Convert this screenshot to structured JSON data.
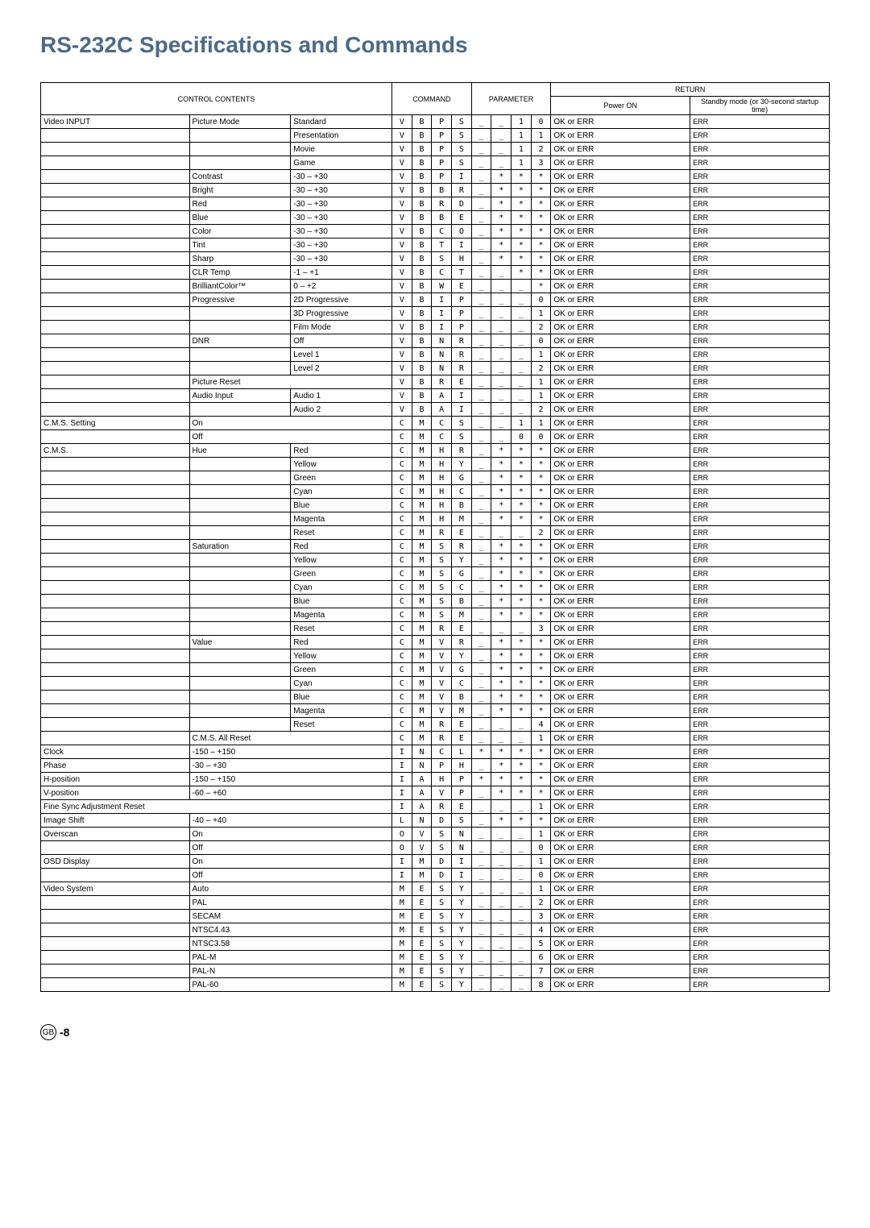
{
  "title": "RS-232C Specifications and Commands",
  "headers": {
    "control": "CONTROL CONTENTS",
    "command": "COMMAND",
    "parameter": "PARAMETER",
    "return": "RETURN",
    "power_on": "Power ON",
    "standby": "Standby mode\n(or 30-second startup time)"
  },
  "footer_badge": "GB",
  "footer_page": "-8",
  "rows": [
    {
      "c1": "Video INPUT",
      "c2": "Picture Mode",
      "c3": "Standard",
      "cmd": [
        "V",
        "B",
        "P",
        "S"
      ],
      "par": [
        "_",
        "_",
        "1",
        "0"
      ],
      "r1": "OK or ERR",
      "r2": "ERR"
    },
    {
      "c1": "",
      "c2": "",
      "c3": "Presentation",
      "cmd": [
        "V",
        "B",
        "P",
        "S"
      ],
      "par": [
        "_",
        "_",
        "1",
        "1"
      ],
      "r1": "OK or ERR",
      "r2": "ERR"
    },
    {
      "c1": "",
      "c2": "",
      "c3": "Movie",
      "cmd": [
        "V",
        "B",
        "P",
        "S"
      ],
      "par": [
        "_",
        "_",
        "1",
        "2"
      ],
      "r1": "OK or ERR",
      "r2": "ERR"
    },
    {
      "c1": "",
      "c2": "",
      "c3": "Game",
      "cmd": [
        "V",
        "B",
        "P",
        "S"
      ],
      "par": [
        "_",
        "_",
        "1",
        "3"
      ],
      "r1": "OK or ERR",
      "r2": "ERR"
    },
    {
      "c1": "",
      "c2": "Contrast",
      "c3": "-30 – +30",
      "cmd": [
        "V",
        "B",
        "P",
        "I"
      ],
      "par": [
        "_",
        "*",
        "*",
        "*"
      ],
      "r1": "OK or ERR",
      "r2": "ERR"
    },
    {
      "c1": "",
      "c2": "Bright",
      "c3": "-30 – +30",
      "cmd": [
        "V",
        "B",
        "B",
        "R"
      ],
      "par": [
        "_",
        "*",
        "*",
        "*"
      ],
      "r1": "OK or ERR",
      "r2": "ERR"
    },
    {
      "c1": "",
      "c2": "Red",
      "c3": "-30 – +30",
      "cmd": [
        "V",
        "B",
        "R",
        "D"
      ],
      "par": [
        "_",
        "*",
        "*",
        "*"
      ],
      "r1": "OK or ERR",
      "r2": "ERR"
    },
    {
      "c1": "",
      "c2": "Blue",
      "c3": "-30 – +30",
      "cmd": [
        "V",
        "B",
        "B",
        "E"
      ],
      "par": [
        "_",
        "*",
        "*",
        "*"
      ],
      "r1": "OK or ERR",
      "r2": "ERR"
    },
    {
      "c1": "",
      "c2": "Color",
      "c3": "-30 – +30",
      "cmd": [
        "V",
        "B",
        "C",
        "O"
      ],
      "par": [
        "_",
        "*",
        "*",
        "*"
      ],
      "r1": "OK or ERR",
      "r2": "ERR"
    },
    {
      "c1": "",
      "c2": "Tint",
      "c3": "-30 – +30",
      "cmd": [
        "V",
        "B",
        "T",
        "I"
      ],
      "par": [
        "_",
        "*",
        "*",
        "*"
      ],
      "r1": "OK or ERR",
      "r2": "ERR"
    },
    {
      "c1": "",
      "c2": "Sharp",
      "c3": "-30 – +30",
      "cmd": [
        "V",
        "B",
        "S",
        "H"
      ],
      "par": [
        "_",
        "*",
        "*",
        "*"
      ],
      "r1": "OK or ERR",
      "r2": "ERR"
    },
    {
      "c1": "",
      "c2": "CLR Temp",
      "c3": "-1 – +1",
      "cmd": [
        "V",
        "B",
        "C",
        "T"
      ],
      "par": [
        "_",
        "_",
        "*",
        "*"
      ],
      "r1": "OK or ERR",
      "r2": "ERR"
    },
    {
      "c1": "",
      "c2": "BrilliantColor™",
      "c3": "0 – +2",
      "cmd": [
        "V",
        "B",
        "W",
        "E"
      ],
      "par": [
        "_",
        "_",
        "_",
        "*"
      ],
      "r1": "OK or ERR",
      "r2": "ERR"
    },
    {
      "c1": "",
      "c2": "Progressive",
      "c3": "2D Progressive",
      "cmd": [
        "V",
        "B",
        "I",
        "P"
      ],
      "par": [
        "_",
        "_",
        "_",
        "0"
      ],
      "r1": "OK or ERR",
      "r2": "ERR"
    },
    {
      "c1": "",
      "c2": "",
      "c3": "3D Progressive",
      "cmd": [
        "V",
        "B",
        "I",
        "P"
      ],
      "par": [
        "_",
        "_",
        "_",
        "1"
      ],
      "r1": "OK or ERR",
      "r2": "ERR"
    },
    {
      "c1": "",
      "c2": "",
      "c3": "Film Mode",
      "cmd": [
        "V",
        "B",
        "I",
        "P"
      ],
      "par": [
        "_",
        "_",
        "_",
        "2"
      ],
      "r1": "OK or ERR",
      "r2": "ERR"
    },
    {
      "c1": "",
      "c2": "DNR",
      "c3": "Off",
      "cmd": [
        "V",
        "B",
        "N",
        "R"
      ],
      "par": [
        "_",
        "_",
        "_",
        "0"
      ],
      "r1": "OK or ERR",
      "r2": "ERR"
    },
    {
      "c1": "",
      "c2": "",
      "c3": "Level 1",
      "cmd": [
        "V",
        "B",
        "N",
        "R"
      ],
      "par": [
        "_",
        "_",
        "_",
        "1"
      ],
      "r1": "OK or ERR",
      "r2": "ERR"
    },
    {
      "c1": "",
      "c2": "",
      "c3": "Level 2",
      "cmd": [
        "V",
        "B",
        "N",
        "R"
      ],
      "par": [
        "_",
        "_",
        "_",
        "2"
      ],
      "r1": "OK or ERR",
      "r2": "ERR"
    },
    {
      "c1": "",
      "c2": "Picture Reset",
      "c3": "",
      "cmd": [
        "V",
        "B",
        "R",
        "E"
      ],
      "par": [
        "_",
        "_",
        "_",
        "1"
      ],
      "r1": "OK or ERR",
      "r2": "ERR",
      "colspan23": true
    },
    {
      "c1": "",
      "c2": "Audio Input",
      "c3": "Audio 1",
      "cmd": [
        "V",
        "B",
        "A",
        "I"
      ],
      "par": [
        "_",
        "_",
        "_",
        "1"
      ],
      "r1": "OK or ERR",
      "r2": "ERR"
    },
    {
      "c1": "",
      "c2": "",
      "c3": "Audio 2",
      "cmd": [
        "V",
        "B",
        "A",
        "I"
      ],
      "par": [
        "_",
        "_",
        "_",
        "2"
      ],
      "r1": "OK or ERR",
      "r2": "ERR"
    },
    {
      "c1": "C.M.S. Setting",
      "c2": "On",
      "c3": "",
      "cmd": [
        "C",
        "M",
        "C",
        "S"
      ],
      "par": [
        "_",
        "_",
        "1",
        "1"
      ],
      "r1": "OK or ERR",
      "r2": "ERR",
      "colspan23": true
    },
    {
      "c1": "",
      "c2": "Off",
      "c3": "",
      "cmd": [
        "C",
        "M",
        "C",
        "S"
      ],
      "par": [
        "_",
        "_",
        "0",
        "0"
      ],
      "r1": "OK or ERR",
      "r2": "ERR",
      "colspan23": true
    },
    {
      "c1": "C.M.S.",
      "c2": "Hue",
      "c3": "Red",
      "cmd": [
        "C",
        "M",
        "H",
        "R"
      ],
      "par": [
        "_",
        "*",
        "*",
        "*"
      ],
      "r1": "OK or ERR",
      "r2": "ERR"
    },
    {
      "c1": "",
      "c2": "",
      "c3": "Yellow",
      "cmd": [
        "C",
        "M",
        "H",
        "Y"
      ],
      "par": [
        "_",
        "*",
        "*",
        "*"
      ],
      "r1": "OK or ERR",
      "r2": "ERR"
    },
    {
      "c1": "",
      "c2": "",
      "c3": "Green",
      "cmd": [
        "C",
        "M",
        "H",
        "G"
      ],
      "par": [
        "_",
        "*",
        "*",
        "*"
      ],
      "r1": "OK or ERR",
      "r2": "ERR"
    },
    {
      "c1": "",
      "c2": "",
      "c3": "Cyan",
      "cmd": [
        "C",
        "M",
        "H",
        "C"
      ],
      "par": [
        "_",
        "*",
        "*",
        "*"
      ],
      "r1": "OK or ERR",
      "r2": "ERR"
    },
    {
      "c1": "",
      "c2": "",
      "c3": "Blue",
      "cmd": [
        "C",
        "M",
        "H",
        "B"
      ],
      "par": [
        "_",
        "*",
        "*",
        "*"
      ],
      "r1": "OK or ERR",
      "r2": "ERR"
    },
    {
      "c1": "",
      "c2": "",
      "c3": "Magenta",
      "cmd": [
        "C",
        "M",
        "H",
        "M"
      ],
      "par": [
        "_",
        "*",
        "*",
        "*"
      ],
      "r1": "OK or ERR",
      "r2": "ERR"
    },
    {
      "c1": "",
      "c2": "",
      "c3": "Reset",
      "cmd": [
        "C",
        "M",
        "R",
        "E"
      ],
      "par": [
        "_",
        "_",
        "_",
        "2"
      ],
      "r1": "OK or ERR",
      "r2": "ERR"
    },
    {
      "c1": "",
      "c2": "Saturation",
      "c3": "Red",
      "cmd": [
        "C",
        "M",
        "S",
        "R"
      ],
      "par": [
        "_",
        "*",
        "*",
        "*"
      ],
      "r1": "OK or ERR",
      "r2": "ERR"
    },
    {
      "c1": "",
      "c2": "",
      "c3": "Yellow",
      "cmd": [
        "C",
        "M",
        "S",
        "Y"
      ],
      "par": [
        "_",
        "*",
        "*",
        "*"
      ],
      "r1": "OK or ERR",
      "r2": "ERR"
    },
    {
      "c1": "",
      "c2": "",
      "c3": "Green",
      "cmd": [
        "C",
        "M",
        "S",
        "G"
      ],
      "par": [
        "_",
        "*",
        "*",
        "*"
      ],
      "r1": "OK or ERR",
      "r2": "ERR"
    },
    {
      "c1": "",
      "c2": "",
      "c3": "Cyan",
      "cmd": [
        "C",
        "M",
        "S",
        "C"
      ],
      "par": [
        "_",
        "*",
        "*",
        "*"
      ],
      "r1": "OK or ERR",
      "r2": "ERR"
    },
    {
      "c1": "",
      "c2": "",
      "c3": "Blue",
      "cmd": [
        "C",
        "M",
        "S",
        "B"
      ],
      "par": [
        "_",
        "*",
        "*",
        "*"
      ],
      "r1": "OK or ERR",
      "r2": "ERR"
    },
    {
      "c1": "",
      "c2": "",
      "c3": "Magenta",
      "cmd": [
        "C",
        "M",
        "S",
        "M"
      ],
      "par": [
        "_",
        "*",
        "*",
        "*"
      ],
      "r1": "OK or ERR",
      "r2": "ERR"
    },
    {
      "c1": "",
      "c2": "",
      "c3": "Reset",
      "cmd": [
        "C",
        "M",
        "R",
        "E"
      ],
      "par": [
        "_",
        "_",
        "_",
        "3"
      ],
      "r1": "OK or ERR",
      "r2": "ERR"
    },
    {
      "c1": "",
      "c2": "Value",
      "c3": "Red",
      "cmd": [
        "C",
        "M",
        "V",
        "R"
      ],
      "par": [
        "_",
        "*",
        "*",
        "*"
      ],
      "r1": "OK or ERR",
      "r2": "ERR"
    },
    {
      "c1": "",
      "c2": "",
      "c3": "Yellow",
      "cmd": [
        "C",
        "M",
        "V",
        "Y"
      ],
      "par": [
        "_",
        "*",
        "*",
        "*"
      ],
      "r1": "OK or ERR",
      "r2": "ERR"
    },
    {
      "c1": "",
      "c2": "",
      "c3": "Green",
      "cmd": [
        "C",
        "M",
        "V",
        "G"
      ],
      "par": [
        "_",
        "*",
        "*",
        "*"
      ],
      "r1": "OK or ERR",
      "r2": "ERR"
    },
    {
      "c1": "",
      "c2": "",
      "c3": "Cyan",
      "cmd": [
        "C",
        "M",
        "V",
        "C"
      ],
      "par": [
        "_",
        "*",
        "*",
        "*"
      ],
      "r1": "OK or ERR",
      "r2": "ERR"
    },
    {
      "c1": "",
      "c2": "",
      "c3": "Blue",
      "cmd": [
        "C",
        "M",
        "V",
        "B"
      ],
      "par": [
        "_",
        "*",
        "*",
        "*"
      ],
      "r1": "OK or ERR",
      "r2": "ERR"
    },
    {
      "c1": "",
      "c2": "",
      "c3": "Magenta",
      "cmd": [
        "C",
        "M",
        "V",
        "M"
      ],
      "par": [
        "_",
        "*",
        "*",
        "*"
      ],
      "r1": "OK or ERR",
      "r2": "ERR"
    },
    {
      "c1": "",
      "c2": "",
      "c3": "Reset",
      "cmd": [
        "C",
        "M",
        "R",
        "E"
      ],
      "par": [
        "_",
        "_",
        "_",
        "4"
      ],
      "r1": "OK or ERR",
      "r2": "ERR"
    },
    {
      "c1": "",
      "c2": "C.M.S. All Reset",
      "c3": "",
      "cmd": [
        "C",
        "M",
        "R",
        "E"
      ],
      "par": [
        "_",
        "_",
        "_",
        "1"
      ],
      "r1": "OK or ERR",
      "r2": "ERR",
      "colspan23": true
    },
    {
      "c1": "Clock",
      "c2": "-150 – +150",
      "c3": "",
      "cmd": [
        "I",
        "N",
        "C",
        "L"
      ],
      "par": [
        "*",
        "*",
        "*",
        "*"
      ],
      "r1": "OK or ERR",
      "r2": "ERR",
      "colspan23": true
    },
    {
      "c1": "Phase",
      "c2": "-30 – +30",
      "c3": "",
      "cmd": [
        "I",
        "N",
        "P",
        "H"
      ],
      "par": [
        "_",
        "*",
        "*",
        "*"
      ],
      "r1": "OK or ERR",
      "r2": "ERR",
      "colspan23": true
    },
    {
      "c1": "H-position",
      "c2": "-150 – +150",
      "c3": "",
      "cmd": [
        "I",
        "A",
        "H",
        "P"
      ],
      "par": [
        "*",
        "*",
        "*",
        "*"
      ],
      "r1": "OK or ERR",
      "r2": "ERR",
      "colspan23": true
    },
    {
      "c1": "V-position",
      "c2": "-60 – +60",
      "c3": "",
      "cmd": [
        "I",
        "A",
        "V",
        "P"
      ],
      "par": [
        "_",
        "*",
        "*",
        "*"
      ],
      "r1": "OK or ERR",
      "r2": "ERR",
      "colspan23": true
    },
    {
      "c1": "Fine Sync Adjustment Reset",
      "c2": "",
      "c3": "",
      "cmd": [
        "I",
        "A",
        "R",
        "E"
      ],
      "par": [
        "_",
        "_",
        "_",
        "1"
      ],
      "r1": "OK or ERR",
      "r2": "ERR",
      "colspan123": true
    },
    {
      "c1": "Image Shift",
      "c2": "-40 – +40",
      "c3": "",
      "cmd": [
        "L",
        "N",
        "D",
        "S"
      ],
      "par": [
        "_",
        "*",
        "*",
        "*"
      ],
      "r1": "OK or ERR",
      "r2": "ERR",
      "colspan23": true
    },
    {
      "c1": "Overscan",
      "c2": "On",
      "c3": "",
      "cmd": [
        "O",
        "V",
        "S",
        "N"
      ],
      "par": [
        "_",
        "_",
        "_",
        "1"
      ],
      "r1": "OK or ERR",
      "r2": "ERR",
      "colspan23": true
    },
    {
      "c1": "",
      "c2": "Off",
      "c3": "",
      "cmd": [
        "O",
        "V",
        "S",
        "N"
      ],
      "par": [
        "_",
        "_",
        "_",
        "0"
      ],
      "r1": "OK or ERR",
      "r2": "ERR",
      "colspan23": true
    },
    {
      "c1": "OSD Display",
      "c2": "On",
      "c3": "",
      "cmd": [
        "I",
        "M",
        "D",
        "I"
      ],
      "par": [
        "_",
        "_",
        "_",
        "1"
      ],
      "r1": "OK or ERR",
      "r2": "ERR",
      "colspan23": true
    },
    {
      "c1": "",
      "c2": "Off",
      "c3": "",
      "cmd": [
        "I",
        "M",
        "D",
        "I"
      ],
      "par": [
        "_",
        "_",
        "_",
        "0"
      ],
      "r1": "OK or ERR",
      "r2": "ERR",
      "colspan23": true
    },
    {
      "c1": "Video System",
      "c2": "Auto",
      "c3": "",
      "cmd": [
        "M",
        "E",
        "S",
        "Y"
      ],
      "par": [
        "_",
        "_",
        "_",
        "1"
      ],
      "r1": "OK or ERR",
      "r2": "ERR",
      "colspan23": true
    },
    {
      "c1": "",
      "c2": "PAL",
      "c3": "",
      "cmd": [
        "M",
        "E",
        "S",
        "Y"
      ],
      "par": [
        "_",
        "_",
        "_",
        "2"
      ],
      "r1": "OK or ERR",
      "r2": "ERR",
      "colspan23": true
    },
    {
      "c1": "",
      "c2": "SECAM",
      "c3": "",
      "cmd": [
        "M",
        "E",
        "S",
        "Y"
      ],
      "par": [
        "_",
        "_",
        "_",
        "3"
      ],
      "r1": "OK or ERR",
      "r2": "ERR",
      "colspan23": true
    },
    {
      "c1": "",
      "c2": "NTSC4.43",
      "c3": "",
      "cmd": [
        "M",
        "E",
        "S",
        "Y"
      ],
      "par": [
        "_",
        "_",
        "_",
        "4"
      ],
      "r1": "OK or ERR",
      "r2": "ERR",
      "colspan23": true
    },
    {
      "c1": "",
      "c2": "NTSC3.58",
      "c3": "",
      "cmd": [
        "M",
        "E",
        "S",
        "Y"
      ],
      "par": [
        "_",
        "_",
        "_",
        "5"
      ],
      "r1": "OK or ERR",
      "r2": "ERR",
      "colspan23": true
    },
    {
      "c1": "",
      "c2": "PAL-M",
      "c3": "",
      "cmd": [
        "M",
        "E",
        "S",
        "Y"
      ],
      "par": [
        "_",
        "_",
        "_",
        "6"
      ],
      "r1": "OK or ERR",
      "r2": "ERR",
      "colspan23": true
    },
    {
      "c1": "",
      "c2": "PAL-N",
      "c3": "",
      "cmd": [
        "M",
        "E",
        "S",
        "Y"
      ],
      "par": [
        "_",
        "_",
        "_",
        "7"
      ],
      "r1": "OK or ERR",
      "r2": "ERR",
      "colspan23": true
    },
    {
      "c1": "",
      "c2": "PAL-60",
      "c3": "",
      "cmd": [
        "M",
        "E",
        "S",
        "Y"
      ],
      "par": [
        "_",
        "_",
        "_",
        "8"
      ],
      "r1": "OK or ERR",
      "r2": "ERR",
      "colspan23": true
    }
  ]
}
